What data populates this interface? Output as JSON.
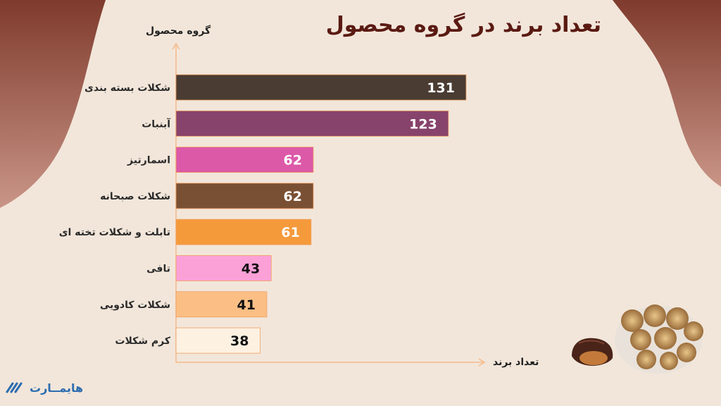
{
  "title": "تعداد برند در گروه محصول",
  "brand": {
    "logo_text": "هایمــارت"
  },
  "colors": {
    "background": "#f2e6da",
    "corner": "#9a5a4a",
    "title": "#5a1a12",
    "axis": "#f5b98a"
  },
  "chart_data": {
    "type": "bar",
    "orientation": "horizontal",
    "title": "تعداد برند در گروه محصول",
    "xlabel": "تعداد برند",
    "ylabel": "گروه محصول",
    "categories": [
      "شکلات بسته بندی",
      "آبنبات",
      "اسمارتیز",
      "شکلات صبحانه",
      "تابلت و شکلات تخته ای",
      "تافی",
      "شکلات کادویی",
      "کرم شکلات"
    ],
    "values": [
      131,
      123,
      62,
      62,
      61,
      43,
      41,
      38
    ],
    "bar_colors": [
      "#4a3c33",
      "#87436b",
      "#dc59a8",
      "#7a5034",
      "#f59a3b",
      "#fba1d7",
      "#fbbf85",
      "#fdf1e2"
    ],
    "label_colors": [
      "#ffffff",
      "#ffffff",
      "#ffffff",
      "#ffffff",
      "#ffffff",
      "#111111",
      "#111111",
      "#111111"
    ],
    "xlim": [
      0,
      140
    ],
    "grid": false,
    "legend": "none"
  }
}
